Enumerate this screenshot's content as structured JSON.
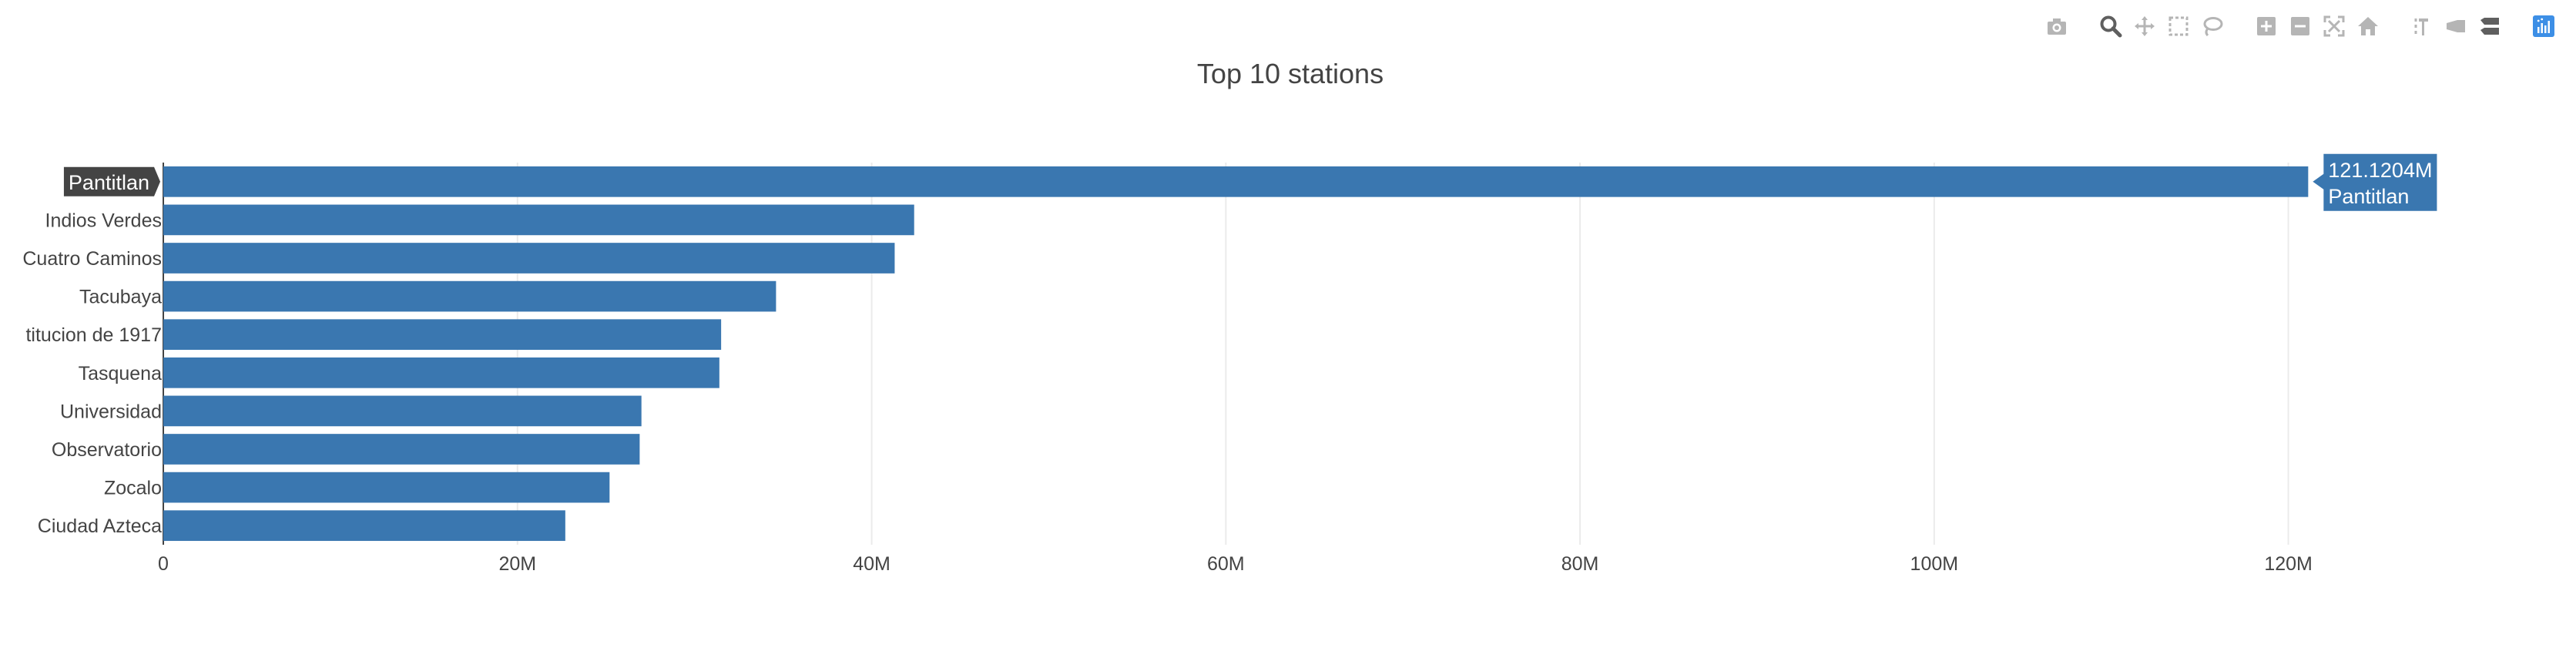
{
  "toolbar": {
    "groups": [
      [
        "camera-icon"
      ],
      [
        "zoom-icon",
        "pan-icon",
        "box-select-icon",
        "lasso-select-icon"
      ],
      [
        "zoom-in-icon",
        "zoom-out-icon",
        "autoscale-icon",
        "reset-axes-icon"
      ],
      [
        "spike-lines-icon",
        "hover-closest-icon",
        "hover-compare-icon"
      ],
      [
        "plotly-logo-icon"
      ]
    ]
  },
  "chart_data": {
    "type": "bar",
    "orientation": "horizontal",
    "title": "Top 10 stations",
    "categories": [
      "Pantitlan",
      "Indios Verdes",
      "Cuatro Caminos",
      "Tacubaya",
      "titucion de 1917",
      "Tasquena",
      "Universidad",
      "Observatorio",
      "Zocalo",
      "Ciudad Azteca"
    ],
    "values": [
      121120400,
      42400000,
      41300000,
      34600000,
      31500000,
      31400000,
      27000000,
      26900000,
      25200000,
      22700000
    ],
    "xlim": [
      0,
      127500000
    ],
    "xticks": [
      0,
      20000000,
      40000000,
      60000000,
      80000000,
      100000000,
      120000000
    ],
    "xtick_labels": [
      "0",
      "20M",
      "40M",
      "60M",
      "80M",
      "100M",
      "120M"
    ],
    "xlabel": "",
    "ylabel": "",
    "grid": true,
    "bar_color": "#3a77b0",
    "hover": {
      "category": "Pantitlan",
      "value_label": "121.1204M"
    }
  }
}
